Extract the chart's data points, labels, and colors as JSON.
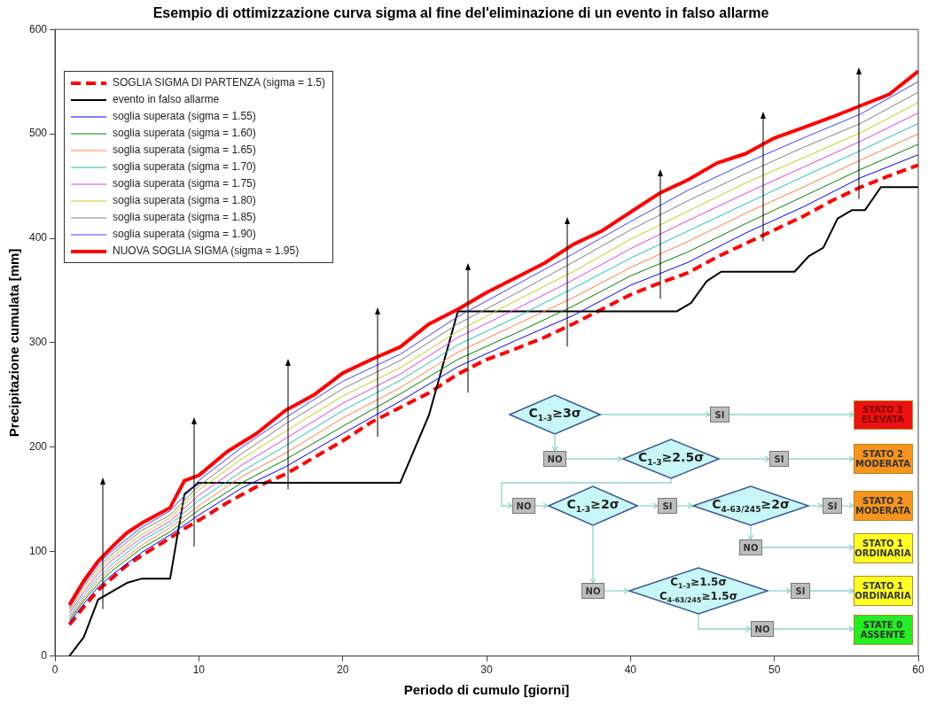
{
  "chart_data": {
    "type": "line",
    "title": "Esempio di ottimizzazione curva sigma al fine del'eliminazione di un evento in falso allarme",
    "xlabel": "Periodo di cumulo [giorni]",
    "ylabel": "Precipitazione cumulata [mm]",
    "xlim": [
      0,
      60
    ],
    "xticks": [
      0,
      10,
      20,
      30,
      40,
      50,
      60
    ],
    "ylim": [
      0,
      600
    ],
    "yticks": [
      0,
      100,
      200,
      300,
      400,
      500,
      600
    ],
    "grid": false,
    "legend": "top left",
    "marker": "none",
    "series": [
      {
        "name": "SOGLIA SIGMA DI PARTENZA (sigma = 1.5)",
        "color": "#ff0000",
        "line_style": "dashed",
        "x": [
          1,
          2,
          3,
          4,
          5,
          6,
          8,
          9,
          10,
          12,
          14,
          16,
          18,
          20,
          22,
          24,
          26,
          28,
          30,
          32,
          34,
          36,
          38,
          40,
          42,
          44,
          46,
          48,
          50,
          52,
          54,
          56,
          58,
          60
        ],
        "values": [
          30,
          47,
          63,
          75,
          87,
          96,
          113,
          122,
          130,
          147,
          162,
          174,
          190,
          206,
          224,
          238,
          252,
          270,
          284,
          294,
          305,
          318,
          332,
          346,
          357,
          367,
          382,
          395,
          408,
          421,
          436,
          449,
          460,
          470
        ]
      },
      {
        "name": "evento in falso allarme",
        "color": "#000000",
        "x": [
          1,
          2,
          3,
          5,
          6,
          8,
          9,
          10,
          24,
          26,
          28,
          43.2,
          44.2,
          45.3,
          46.3,
          51.4,
          52.4,
          53.4,
          54.4,
          55.4,
          56.3,
          57.4,
          60
        ],
        "values": [
          0,
          18,
          54,
          70,
          74,
          74,
          155,
          166,
          166,
          231,
          330,
          330,
          338,
          359,
          368,
          368,
          383,
          391,
          419,
          427,
          427,
          449,
          449
        ]
      },
      {
        "name": "soglia superata (sigma = 1.55)",
        "color": "#0000ff",
        "x": [
          1,
          2,
          3,
          4,
          6,
          8,
          10,
          13,
          16,
          20,
          24,
          28,
          32,
          36,
          40,
          44,
          48,
          52,
          56,
          60
        ],
        "values": [
          32,
          50,
          66,
          78,
          99,
          116,
          135,
          161,
          181,
          213,
          244,
          277,
          302,
          326,
          355,
          377,
          405,
          430,
          458,
          480
        ]
      },
      {
        "name": "soglia superata (sigma = 1.60)",
        "color": "#008000",
        "x": [
          1,
          2,
          3,
          4,
          6,
          8,
          10,
          13,
          16,
          20,
          24,
          28,
          32,
          36,
          40,
          44,
          48,
          52,
          56,
          60
        ],
        "values": [
          34,
          53,
          69,
          82,
          103,
          119,
          140,
          166,
          188,
          220,
          251,
          284,
          309,
          335,
          364,
          387,
          414,
          440,
          466,
          490
        ]
      },
      {
        "name": "soglia superata (sigma = 1.65)",
        "color": "#ff8040",
        "x": [
          1,
          2,
          3,
          4,
          6,
          8,
          10,
          13,
          16,
          20,
          24,
          28,
          32,
          36,
          40,
          44,
          48,
          52,
          56,
          60
        ],
        "values": [
          36,
          55,
          72,
          85,
          106,
          123,
          144,
          172,
          194,
          228,
          257,
          291,
          317,
          343,
          372,
          397,
          424,
          449,
          475,
          500
        ]
      },
      {
        "name": "soglia superata (sigma = 1.70)",
        "color": "#20c0c0",
        "x": [
          1,
          2,
          3,
          4,
          6,
          8,
          10,
          13,
          16,
          20,
          24,
          28,
          32,
          36,
          40,
          44,
          48,
          52,
          56,
          60
        ],
        "values": [
          38,
          58,
          75,
          88,
          110,
          126,
          149,
          177,
          201,
          235,
          264,
          298,
          324,
          352,
          381,
          407,
          433,
          459,
          484,
          510
        ]
      },
      {
        "name": "soglia superata (sigma = 1.75)",
        "color": "#e040e0",
        "x": [
          1,
          2,
          3,
          4,
          6,
          8,
          10,
          13,
          16,
          20,
          24,
          28,
          32,
          36,
          40,
          44,
          48,
          52,
          56,
          60
        ],
        "values": [
          41,
          61,
          79,
          92,
          113,
          129,
          154,
          183,
          208,
          242,
          270,
          305,
          332,
          360,
          390,
          417,
          443,
          468,
          493,
          520
        ]
      },
      {
        "name": "soglia superata (sigma = 1.80)",
        "color": "#c8c820",
        "x": [
          1,
          2,
          3,
          4,
          6,
          8,
          10,
          13,
          16,
          20,
          24,
          28,
          32,
          36,
          40,
          44,
          48,
          52,
          56,
          60
        ],
        "values": [
          43,
          64,
          82,
          95,
          116,
          132,
          159,
          189,
          215,
          249,
          276,
          311,
          340,
          368,
          399,
          426,
          453,
          477,
          501,
          530
        ]
      },
      {
        "name": "soglia superata (sigma = 1.85)",
        "color": "#808080",
        "x": [
          1,
          2,
          3,
          4,
          6,
          8,
          10,
          13,
          16,
          20,
          24,
          28,
          32,
          36,
          40,
          44,
          48,
          52,
          56,
          60
        ],
        "values": [
          45,
          67,
          85,
          98,
          120,
          135,
          163,
          194,
          222,
          256,
          283,
          318,
          347,
          377,
          408,
          436,
          462,
          487,
          510,
          540
        ]
      },
      {
        "name": "soglia superata (sigma = 1.90)",
        "color": "#4040ff",
        "x": [
          1,
          2,
          3,
          4,
          6,
          8,
          10,
          13,
          16,
          20,
          24,
          28,
          32,
          36,
          40,
          44,
          48,
          52,
          56,
          60
        ],
        "values": [
          47,
          69,
          88,
          101,
          123,
          139,
          168,
          200,
          228,
          263,
          289,
          325,
          355,
          385,
          416,
          446,
          472,
          496,
          519,
          550
        ]
      },
      {
        "name": "NUOVA SOGLIA SIGMA (sigma = 1.95)",
        "color": "#ff0000",
        "line_style": "solid",
        "x": [
          1,
          2,
          3,
          4,
          5,
          6,
          8,
          9,
          10,
          12,
          14,
          16,
          18,
          20,
          22,
          24,
          26,
          28,
          30,
          32,
          34,
          36,
          38,
          40,
          42,
          44,
          46,
          48,
          50,
          52,
          54,
          56,
          58,
          60
        ],
        "values": [
          49,
          72,
          91,
          105,
          118,
          127,
          142,
          168,
          173,
          196,
          213,
          235,
          250,
          271,
          284,
          296,
          318,
          332,
          348,
          362,
          376,
          394,
          407,
          425,
          443,
          456,
          472,
          481,
          496,
          506,
          516,
          527,
          538,
          560
        ]
      }
    ],
    "annotations": [
      "C$_{1-3}$≥3σ",
      "SI",
      "STATO 3\nELEVATA",
      "NO",
      "C$_{1-3}$≥2.5σ",
      "SI",
      "STATO 2\nMODERATA",
      "NO",
      "C$_{1-3}$≥2σ",
      "SI",
      "C$_{4-63/245}$≥2σ",
      "SI",
      "STATO 2\nMODERATA",
      "NO",
      "STATO 1\nORDINARIA",
      "NO",
      "C$_{1-3}$≥1.5σ\nC$_{4-63/245}$≥1.5σ",
      "SI",
      "STATO 1\nORDINARIA",
      "NO",
      "STATE 0\nASSENTE"
    ]
  }
}
